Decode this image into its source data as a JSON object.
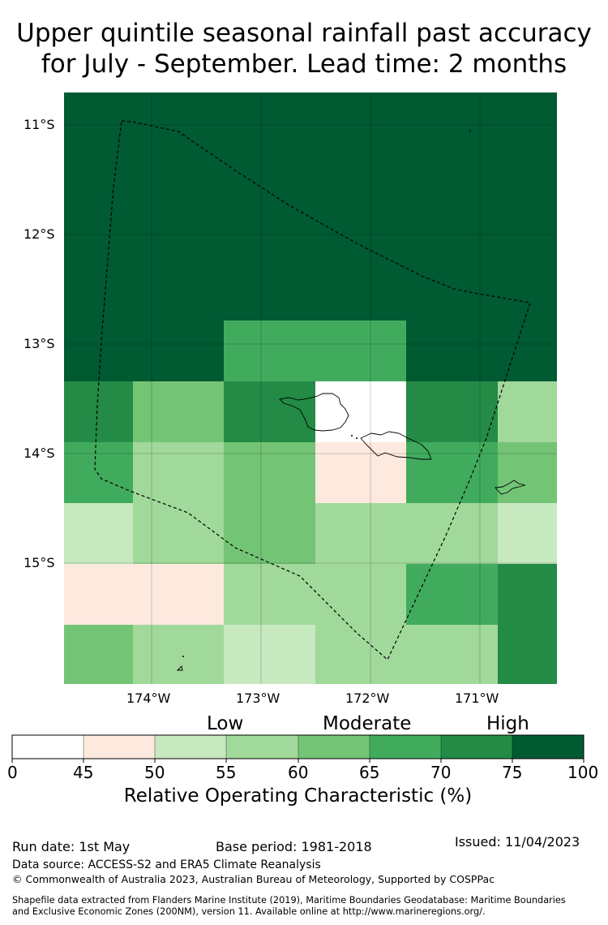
{
  "title_line1": "Upper quintile seasonal rainfall past accuracy",
  "title_line2": "for July - September. Lead time: 2 months",
  "lat_labels": [
    "11°S",
    "12°S",
    "13°S",
    "14°S",
    "15°S"
  ],
  "lon_labels": [
    "174°W",
    "173°W",
    "172°W",
    "171°W"
  ],
  "category_labels": [
    "Low",
    "Moderate",
    "High"
  ],
  "colorbar": {
    "ticks": [
      "0",
      "45",
      "50",
      "55",
      "60",
      "65",
      "70",
      "75",
      "100"
    ],
    "colors": [
      "#ffffff",
      "#fee9df",
      "#c7e9c0",
      "#a1d99b",
      "#74c476",
      "#41ab5d",
      "#238b45",
      "#005a32"
    ],
    "title": "Relative Operating Characteristic (%)"
  },
  "footer": {
    "run_date": "Run date: 1st May",
    "base_period": "Base period: 1981-2018",
    "issued": "Issued: 11/04/2023",
    "data_source": "Data source: ACCESS-S2 and ERA5 Climate Reanalysis",
    "copyright": "© Commonwealth of Australia 2023, Australian Bureau of Meteorology, Supported by COSPPac",
    "shapefile1": "Shapefile data extracted from Flanders Marine Institute (2019), Maritime Boundaries Geodatabase: Maritime Boundaries",
    "shapefile2": "and Exclusive Economic Zones (200NM), version 11. Available online at http://www.marineregions.org/."
  }
}
